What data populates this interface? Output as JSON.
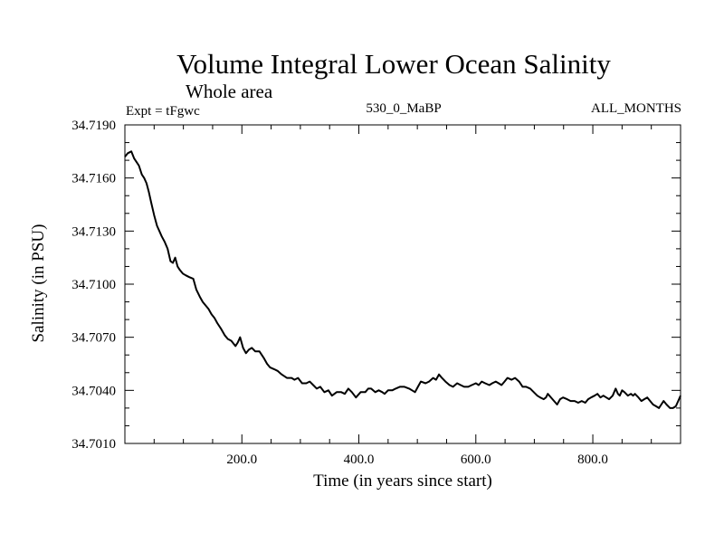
{
  "chart_data": {
    "type": "line",
    "title": "Volume Integral Lower Ocean Salinity",
    "subtitle": "Whole area",
    "annotations": {
      "experiment": "Expt = tFgwc",
      "period": "530_0_MaBP",
      "months": "ALL_MONTHS"
    },
    "xlabel": "Time (in years since start)",
    "ylabel": "Salinity (in PSU)",
    "xlim": [
      0,
      950
    ],
    "ylim": [
      34.701,
      34.719
    ],
    "x_ticks": [
      200,
      400,
      600,
      800
    ],
    "x_tick_labels": [
      "200.0",
      "400.0",
      "600.0",
      "800.0"
    ],
    "x_minor_step": 50,
    "y_ticks": [
      34.701,
      34.704,
      34.707,
      34.71,
      34.713,
      34.716,
      34.719
    ],
    "y_tick_labels": [
      "34.7010",
      "34.7040",
      "34.7070",
      "34.7100",
      "34.7130",
      "34.7160",
      "34.7190"
    ],
    "y_minor_step": 0.001,
    "grid": false,
    "legend": "none",
    "line_color": "#000000",
    "series": [
      {
        "name": "Salinity",
        "x": [
          0,
          5,
          11,
          16,
          20,
          24,
          29,
          33,
          37,
          41,
          45,
          50,
          55,
          59,
          63,
          68,
          73,
          78,
          82,
          86,
          90,
          94,
          99,
          104,
          110,
          117,
          122,
          128,
          133,
          138,
          143,
          148,
          153,
          158,
          164,
          171,
          176,
          182,
          189,
          193,
          197,
          202,
          207,
          212,
          217,
          223,
          230,
          238,
          243,
          248,
          255,
          261,
          268,
          277,
          285,
          290,
          296,
          303,
          310,
          316,
          322,
          328,
          334,
          341,
          348,
          354,
          362,
          370,
          376,
          382,
          388,
          395,
          403,
          411,
          416,
          421,
          428,
          434,
          440,
          444,
          450,
          457,
          463,
          470,
          478,
          486,
          491,
          496,
          501,
          506,
          514,
          520,
          527,
          532,
          537,
          542,
          548,
          555,
          561,
          568,
          574,
          580,
          587,
          593,
          600,
          605,
          610,
          616,
          623,
          628,
          634,
          639,
          644,
          649,
          654,
          661,
          667,
          674,
          680,
          686,
          693,
          699,
          705,
          710,
          716,
          720,
          723,
          731,
          739,
          744,
          749,
          756,
          762,
          769,
          775,
          781,
          787,
          792,
          797,
          803,
          808,
          813,
          818,
          823,
          828,
          834,
          839,
          843,
          846,
          850,
          854,
          860,
          865,
          869,
          872,
          878,
          883,
          888,
          893,
          898,
          903,
          908,
          913,
          917,
          921,
          926,
          932,
          937,
          942,
          946,
          950
        ],
        "values": [
          34.7172,
          34.7174,
          34.7175,
          34.7171,
          34.7169,
          34.7167,
          34.7162,
          34.716,
          34.7157,
          34.7152,
          34.7146,
          34.7139,
          34.7133,
          34.713,
          34.7127,
          34.7124,
          34.712,
          34.7113,
          34.7112,
          34.7115,
          34.711,
          34.7108,
          34.7106,
          34.7105,
          34.7104,
          34.7103,
          34.7097,
          34.7093,
          34.709,
          34.7088,
          34.7086,
          34.7083,
          34.7081,
          34.7078,
          34.7075,
          34.7071,
          34.7069,
          34.7068,
          34.7065,
          34.7067,
          34.707,
          34.7064,
          34.7061,
          34.7063,
          34.7064,
          34.7062,
          34.7062,
          34.7058,
          34.7055,
          34.7053,
          34.7052,
          34.7051,
          34.7049,
          34.7047,
          34.7047,
          34.7046,
          34.7047,
          34.7044,
          34.7044,
          34.7045,
          34.7043,
          34.7041,
          34.7042,
          34.7039,
          34.704,
          34.7037,
          34.7039,
          34.7039,
          34.7038,
          34.7041,
          34.7039,
          34.7036,
          34.7039,
          34.7039,
          34.7041,
          34.7041,
          34.7039,
          34.704,
          34.7039,
          34.7038,
          34.704,
          34.704,
          34.7041,
          34.7042,
          34.7042,
          34.7041,
          34.704,
          34.7039,
          34.7042,
          34.7045,
          34.7044,
          34.7045,
          34.7047,
          34.7046,
          34.7049,
          34.7047,
          34.7045,
          34.7043,
          34.7042,
          34.7044,
          34.7043,
          34.7042,
          34.7042,
          34.7043,
          34.7044,
          34.7043,
          34.7045,
          34.7044,
          34.7043,
          34.7044,
          34.7045,
          34.7044,
          34.7043,
          34.7045,
          34.7047,
          34.7046,
          34.7047,
          34.7045,
          34.7042,
          34.7042,
          34.7041,
          34.7039,
          34.7037,
          34.7036,
          34.7035,
          34.7036,
          34.7038,
          34.7035,
          34.7032,
          34.7035,
          34.7036,
          34.7035,
          34.7034,
          34.7034,
          34.7033,
          34.7034,
          34.7033,
          34.7035,
          34.7036,
          34.7037,
          34.7038,
          34.7036,
          34.7037,
          34.7036,
          34.7035,
          34.7037,
          34.7041,
          34.7038,
          34.7037,
          34.704,
          34.7039,
          34.7037,
          34.7038,
          34.7037,
          34.7038,
          34.7036,
          34.7034,
          34.7035,
          34.7036,
          34.7034,
          34.7032,
          34.7031,
          34.703,
          34.7032,
          34.7034,
          34.7032,
          34.703,
          34.703,
          34.7031,
          34.7034,
          34.7037
        ]
      }
    ]
  }
}
